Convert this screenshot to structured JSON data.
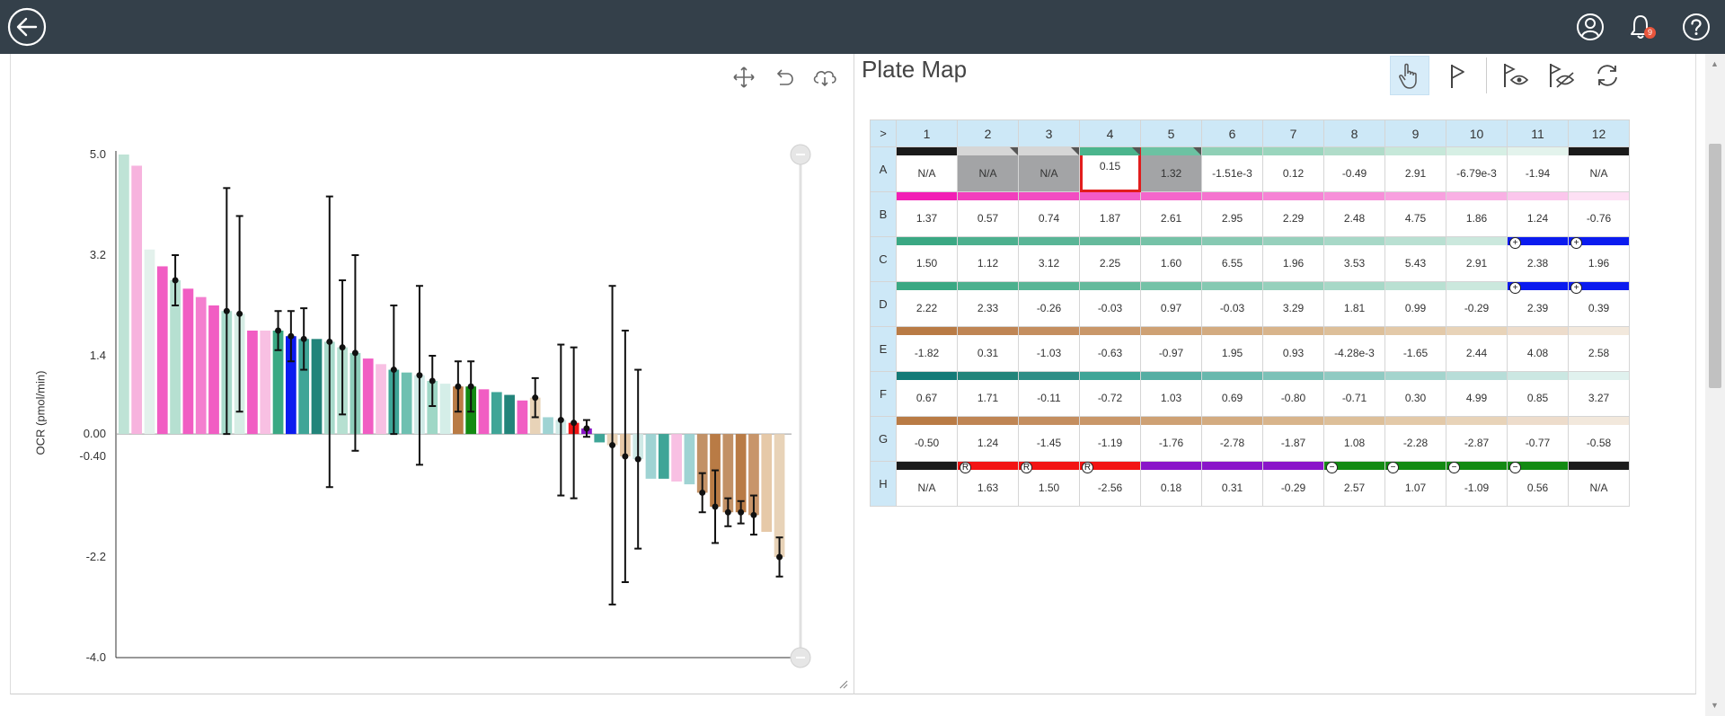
{
  "topbar": {
    "back_icon": "back-arrow-icon",
    "user_icon": "user-icon",
    "bell_icon": "bell-icon",
    "help_icon": "help-icon",
    "notification_count": "9",
    "background": "#34404a"
  },
  "chart_tools": {
    "pan_icon": "move-icon",
    "undo_icon": "undo-icon",
    "cloud_icon": "cloud-icon"
  },
  "plate_tools": {
    "hand_icon": "hand-pointer-icon",
    "flag_icon": "flag-icon",
    "eye_icon": "eye-icon",
    "eye_off_icon": "eye-off-icon",
    "refresh_icon": "refresh-icon"
  },
  "chart_data": {
    "type": "bar",
    "ylabel": "OCR (pmol/min)",
    "yticks": [
      "5.0",
      "3.2",
      "1.4",
      "0.00",
      "-0.40",
      "-2.2",
      "-4.0"
    ],
    "ylim": [
      -4.0,
      5.0
    ],
    "bars": [
      {
        "v": 5.0,
        "c": "#bfe3d6"
      },
      {
        "v": 4.8,
        "c": "#f7b3de"
      },
      {
        "v": 3.3,
        "c": "#e3f1ec"
      },
      {
        "v": 3.0,
        "c": "#f15dc3"
      },
      {
        "v": 2.75,
        "c": "#b6e0d1",
        "e": 0.45
      },
      {
        "v": 2.6,
        "c": "#f15dc3"
      },
      {
        "v": 2.45,
        "c": "#f47fcf"
      },
      {
        "v": 2.3,
        "c": "#f15dc3"
      },
      {
        "v": 2.2,
        "c": "#a8dacb",
        "e": 2.2
      },
      {
        "v": 2.15,
        "c": "#d6ede5",
        "e": 1.75
      },
      {
        "v": 1.85,
        "c": "#f15dc3"
      },
      {
        "v": 1.85,
        "c": "#f8c0e3"
      },
      {
        "v": 1.85,
        "c": "#3aa883",
        "e": 0.35
      },
      {
        "v": 1.75,
        "c": "#0b1bef",
        "e": 0.45
      },
      {
        "v": 1.7,
        "c": "#3fa597",
        "e": 0.55
      },
      {
        "v": 1.7,
        "c": "#22847a"
      },
      {
        "v": 1.65,
        "c": "#a8dacb",
        "e": 2.6
      },
      {
        "v": 1.55,
        "c": "#b6e0d1",
        "e": 1.2
      },
      {
        "v": 1.45,
        "c": "#8fcfbb",
        "e": 1.75
      },
      {
        "v": 1.35,
        "c": "#f15dc3"
      },
      {
        "v": 1.25,
        "c": "#f8c0e3"
      },
      {
        "v": 1.15,
        "c": "#3fa597",
        "e": 1.15
      },
      {
        "v": 1.1,
        "c": "#6ec0b1"
      },
      {
        "v": 1.05,
        "c": "#cfe9e6",
        "e": 1.6
      },
      {
        "v": 0.95,
        "c": "#9fd7c6",
        "e": 0.45
      },
      {
        "v": 0.9,
        "c": "#d5eee8"
      },
      {
        "v": 0.85,
        "c": "#b97b45",
        "e": 0.45
      },
      {
        "v": 0.85,
        "c": "#138a13",
        "e": 0.45
      },
      {
        "v": 0.8,
        "c": "#f15dc3"
      },
      {
        "v": 0.75,
        "c": "#3fa597"
      },
      {
        "v": 0.7,
        "c": "#22847a"
      },
      {
        "v": 0.6,
        "c": "#f15dc3"
      },
      {
        "v": 0.65,
        "c": "#e8d3b8",
        "e": 0.35
      },
      {
        "v": 0.3,
        "c": "#9fd3d3"
      },
      {
        "v": 0.25,
        "c": "#cfe9e6",
        "e": 1.35
      },
      {
        "v": 0.2,
        "c": "#f21414",
        "e": 1.35
      },
      {
        "v": 0.1,
        "c": "#8a15c9",
        "e": 0.15
      },
      {
        "v": -0.15,
        "c": "#3fa597"
      },
      {
        "v": -0.2,
        "c": "#e8d3b8",
        "e": 2.85
      },
      {
        "v": -0.4,
        "c": "#e6c9a8",
        "e": 2.25
      },
      {
        "v": -0.45,
        "c": "#cfe9e6",
        "e": 1.6
      },
      {
        "v": -0.8,
        "c": "#9fd3d3"
      },
      {
        "v": -0.8,
        "c": "#3fa597"
      },
      {
        "v": -0.85,
        "c": "#f8c0e3"
      },
      {
        "v": -0.9,
        "c": "#9fd3d3"
      },
      {
        "v": -1.05,
        "c": "#c29166",
        "e": 0.35
      },
      {
        "v": -1.3,
        "c": "#b97b45",
        "e": 0.65
      },
      {
        "v": -1.4,
        "c": "#c29166",
        "e": 0.25
      },
      {
        "v": -1.4,
        "c": "#b97b45",
        "e": 0.2
      },
      {
        "v": -1.45,
        "c": "#c8956a",
        "e": 0.35
      },
      {
        "v": -1.75,
        "c": "#e6c9a8"
      },
      {
        "v": -2.2,
        "c": "#e8d3b8",
        "e": 0.35
      }
    ]
  },
  "plate": {
    "title": "Plate Map",
    "corner": ">",
    "columns": [
      "1",
      "2",
      "3",
      "4",
      "5",
      "6",
      "7",
      "8",
      "9",
      "10",
      "11",
      "12"
    ],
    "rows": [
      {
        "label": "A",
        "strips": [
          "#1a1a1a",
          "#d6d6d6",
          "#d6d6d6",
          "#4bb58d",
          "#6cc2a2",
          "#8fd0b6",
          "#9ad5bd",
          "#b0dcc9",
          "#c6e8d9",
          "#d6efe4",
          "#e3f3ec",
          "#1a1a1a"
        ],
        "cells": [
          "N/A",
          "N/A",
          "N/A",
          "0.15",
          "1.32",
          "-1.51e-3",
          "0.12",
          "-0.49",
          "2.91",
          "-6.79e-3",
          "-1.94",
          "N/A"
        ],
        "gray": [
          1,
          2,
          4
        ],
        "selected": 3,
        "tri": [
          1,
          2,
          3,
          4
        ]
      },
      {
        "label": "B",
        "strips": [
          "#f21fb5",
          "#f23ebd",
          "#f24cc2",
          "#f35ac6",
          "#f466cb",
          "#f574cf",
          "#f683d5",
          "#f78fd9",
          "#f8a0df",
          "#f9b0e4",
          "#fbc6ec",
          "#fde0f4"
        ],
        "cells": [
          "1.37",
          "0.57",
          "0.74",
          "1.87",
          "2.61",
          "2.95",
          "2.29",
          "2.48",
          "4.75",
          "1.86",
          "1.24",
          "-0.76"
        ]
      },
      {
        "label": "C",
        "strips": [
          "#3aa883",
          "#4cb08e",
          "#59b596",
          "#65ba9c",
          "#75c2a7",
          "#86c9b2",
          "#96d0bc",
          "#a7d8c7",
          "#b9e0d2",
          "#cbe8dd",
          "#0b1bef",
          "#0b1bef"
        ],
        "cells": [
          "1.50",
          "1.12",
          "3.12",
          "2.25",
          "1.60",
          "6.55",
          "1.96",
          "3.53",
          "5.43",
          "2.91",
          "2.38",
          "1.96"
        ],
        "marks": {
          "10": "+",
          "11": "+"
        }
      },
      {
        "label": "D",
        "strips": [
          "#3aa883",
          "#4cb08e",
          "#59b596",
          "#65ba9c",
          "#75c2a7",
          "#86c9b2",
          "#96d0bc",
          "#a7d8c7",
          "#b9e0d2",
          "#cbe8dd",
          "#0b1bef",
          "#0b1bef"
        ],
        "cells": [
          "2.22",
          "2.33",
          "-0.26",
          "-0.03",
          "0.97",
          "-0.03",
          "3.29",
          "1.81",
          "0.99",
          "-0.29",
          "2.39",
          "0.39"
        ],
        "marks": {
          "10": "+",
          "11": "+"
        }
      },
      {
        "label": "E",
        "strips": [
          "#b97b45",
          "#bf8554",
          "#c48e5f",
          "#c99769",
          "#cea174",
          "#d3ab80",
          "#d8b48b",
          "#ddbf99",
          "#e3c9a8",
          "#e8d3b8",
          "#eddccb",
          "#f2e8dc"
        ],
        "cells": [
          "-1.82",
          "0.31",
          "-1.03",
          "-0.63",
          "-0.97",
          "1.95",
          "0.93",
          "-4.28e-3",
          "-1.65",
          "2.44",
          "4.08",
          "2.58"
        ]
      },
      {
        "label": "F",
        "strips": [
          "#137a77",
          "#22847a",
          "#2f8e86",
          "#3fa597",
          "#56aea3",
          "#69b8ad",
          "#7cc1b7",
          "#90cac2",
          "#a4d4cd",
          "#b7ddd8",
          "#cbe7e2",
          "#e0f1ee"
        ],
        "cells": [
          "0.67",
          "1.71",
          "-0.11",
          "-0.72",
          "1.03",
          "0.69",
          "-0.80",
          "-0.71",
          "0.30",
          "4.99",
          "0.85",
          "3.27"
        ]
      },
      {
        "label": "G",
        "strips": [
          "#b97b45",
          "#bf8554",
          "#c48e5f",
          "#c99769",
          "#cea174",
          "#d3ab80",
          "#d8b48b",
          "#ddbf99",
          "#e3c9a8",
          "#e8d3b8",
          "#eddccb",
          "#f2e8dc"
        ],
        "cells": [
          "-0.50",
          "1.24",
          "-1.45",
          "-1.19",
          "-1.76",
          "-2.78",
          "-1.87",
          "1.08",
          "-2.28",
          "-2.87",
          "-0.77",
          "-0.58"
        ]
      },
      {
        "label": "H",
        "strips": [
          "#1a1a1a",
          "#f21414",
          "#f21414",
          "#f21414",
          "#8a15c9",
          "#8a15c9",
          "#8a15c9",
          "#138a13",
          "#138a13",
          "#138a13",
          "#138a13",
          "#1a1a1a"
        ],
        "cells": [
          "N/A",
          "1.63",
          "1.50",
          "-2.56",
          "0.18",
          "0.31",
          "-0.29",
          "2.57",
          "1.07",
          "-1.09",
          "0.56",
          "N/A"
        ],
        "marks": {
          "1": "R",
          "2": "R",
          "3": "R",
          "7": "−",
          "8": "−",
          "9": "−",
          "10": "−"
        }
      }
    ]
  }
}
